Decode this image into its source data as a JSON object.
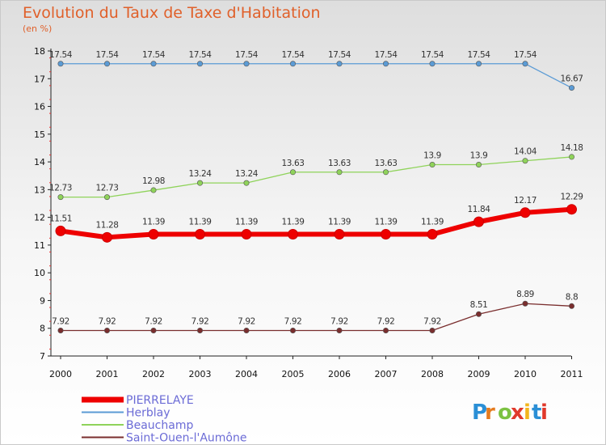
{
  "title": "Evolution du Taux de Taxe d'Habitation",
  "unit": "(en %)",
  "watermark": "Proxiti",
  "chart_data": {
    "type": "line",
    "title": "Evolution du Taux de Taxe d'Habitation",
    "ylabel": "(en %)",
    "x": [
      "2000",
      "2001",
      "2002",
      "2003",
      "2004",
      "2005",
      "2006",
      "2007",
      "2008",
      "2009",
      "2010",
      "2011"
    ],
    "ylim": [
      7,
      18
    ],
    "yticks": [
      7,
      8,
      9,
      10,
      11,
      12,
      13,
      14,
      15,
      16,
      17,
      18
    ],
    "grid": false,
    "legend": "bottom-left",
    "series": [
      {
        "name": "PIERRELAYE",
        "color": "#ee0000",
        "values": [
          11.51,
          11.28,
          11.39,
          11.39,
          11.39,
          11.39,
          11.39,
          11.39,
          11.39,
          11.84,
          12.17,
          12.29
        ],
        "labels": [
          "11.51",
          "11.28",
          "11.39",
          "11.39",
          "11.39",
          "11.39",
          "11.39",
          "11.39",
          "11.39",
          "11.84",
          "12.17",
          "12.29"
        ]
      },
      {
        "name": "Herblay",
        "color": "#5b9bd5",
        "values": [
          17.54,
          17.54,
          17.54,
          17.54,
          17.54,
          17.54,
          17.54,
          17.54,
          17.54,
          17.54,
          17.54,
          16.67
        ],
        "labels": [
          "17.54",
          "17.54",
          "17.54",
          "17.54",
          "17.54",
          "17.54",
          "17.54",
          "17.54",
          "17.54",
          "17.54",
          "17.54",
          "16.67"
        ]
      },
      {
        "name": "Beauchamp",
        "color": "#8fd35a",
        "values": [
          12.73,
          12.73,
          12.98,
          13.24,
          13.24,
          13.63,
          13.63,
          13.63,
          13.9,
          13.9,
          14.04,
          14.18
        ],
        "labels": [
          "12.73",
          "12.73",
          "12.98",
          "13.24",
          "13.24",
          "13.63",
          "13.63",
          "13.63",
          "13.9",
          "13.9",
          "14.04",
          "14.18"
        ]
      },
      {
        "name": "Saint-Ouen-l'Aumône",
        "color": "#7a2e2e",
        "values": [
          7.92,
          7.92,
          7.92,
          7.92,
          7.92,
          7.92,
          7.92,
          7.92,
          7.92,
          8.51,
          8.89,
          8.8
        ],
        "labels": [
          "7.92",
          "7.92",
          "7.92",
          "7.92",
          "7.92",
          "7.92",
          "7.92",
          "7.92",
          "7.92",
          "8.51",
          "8.89",
          "8.8"
        ]
      }
    ]
  }
}
